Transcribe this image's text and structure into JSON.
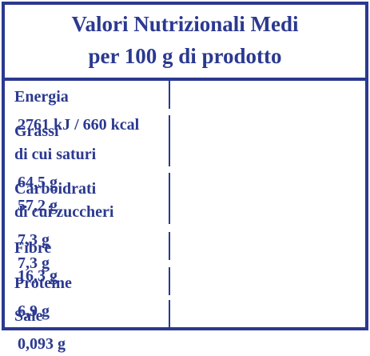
{
  "header": {
    "title": [
      "Valori Nutrizionali Medi",
      "per 100 g di prodotto"
    ]
  },
  "table": {
    "rows": [
      {
        "label": [
          "Energia"
        ],
        "value": [
          "2761 kJ / 660 kcal"
        ]
      },
      {
        "label": [
          "Grassi",
          "di cui saturi"
        ],
        "value": [
          "64,5 g",
          "57,2 g"
        ]
      },
      {
        "label": [
          "Carboidrati",
          "di cui zuccheri"
        ],
        "value": [
          "7,3 g",
          "7,3 g"
        ]
      },
      {
        "label": [
          "Fibre"
        ],
        "value": [
          "16,3 g"
        ]
      },
      {
        "label": [
          "Proteine"
        ],
        "value": [
          "6,9 g"
        ]
      },
      {
        "label": [
          "Sale"
        ],
        "value": [
          "0,093 g"
        ]
      }
    ]
  }
}
